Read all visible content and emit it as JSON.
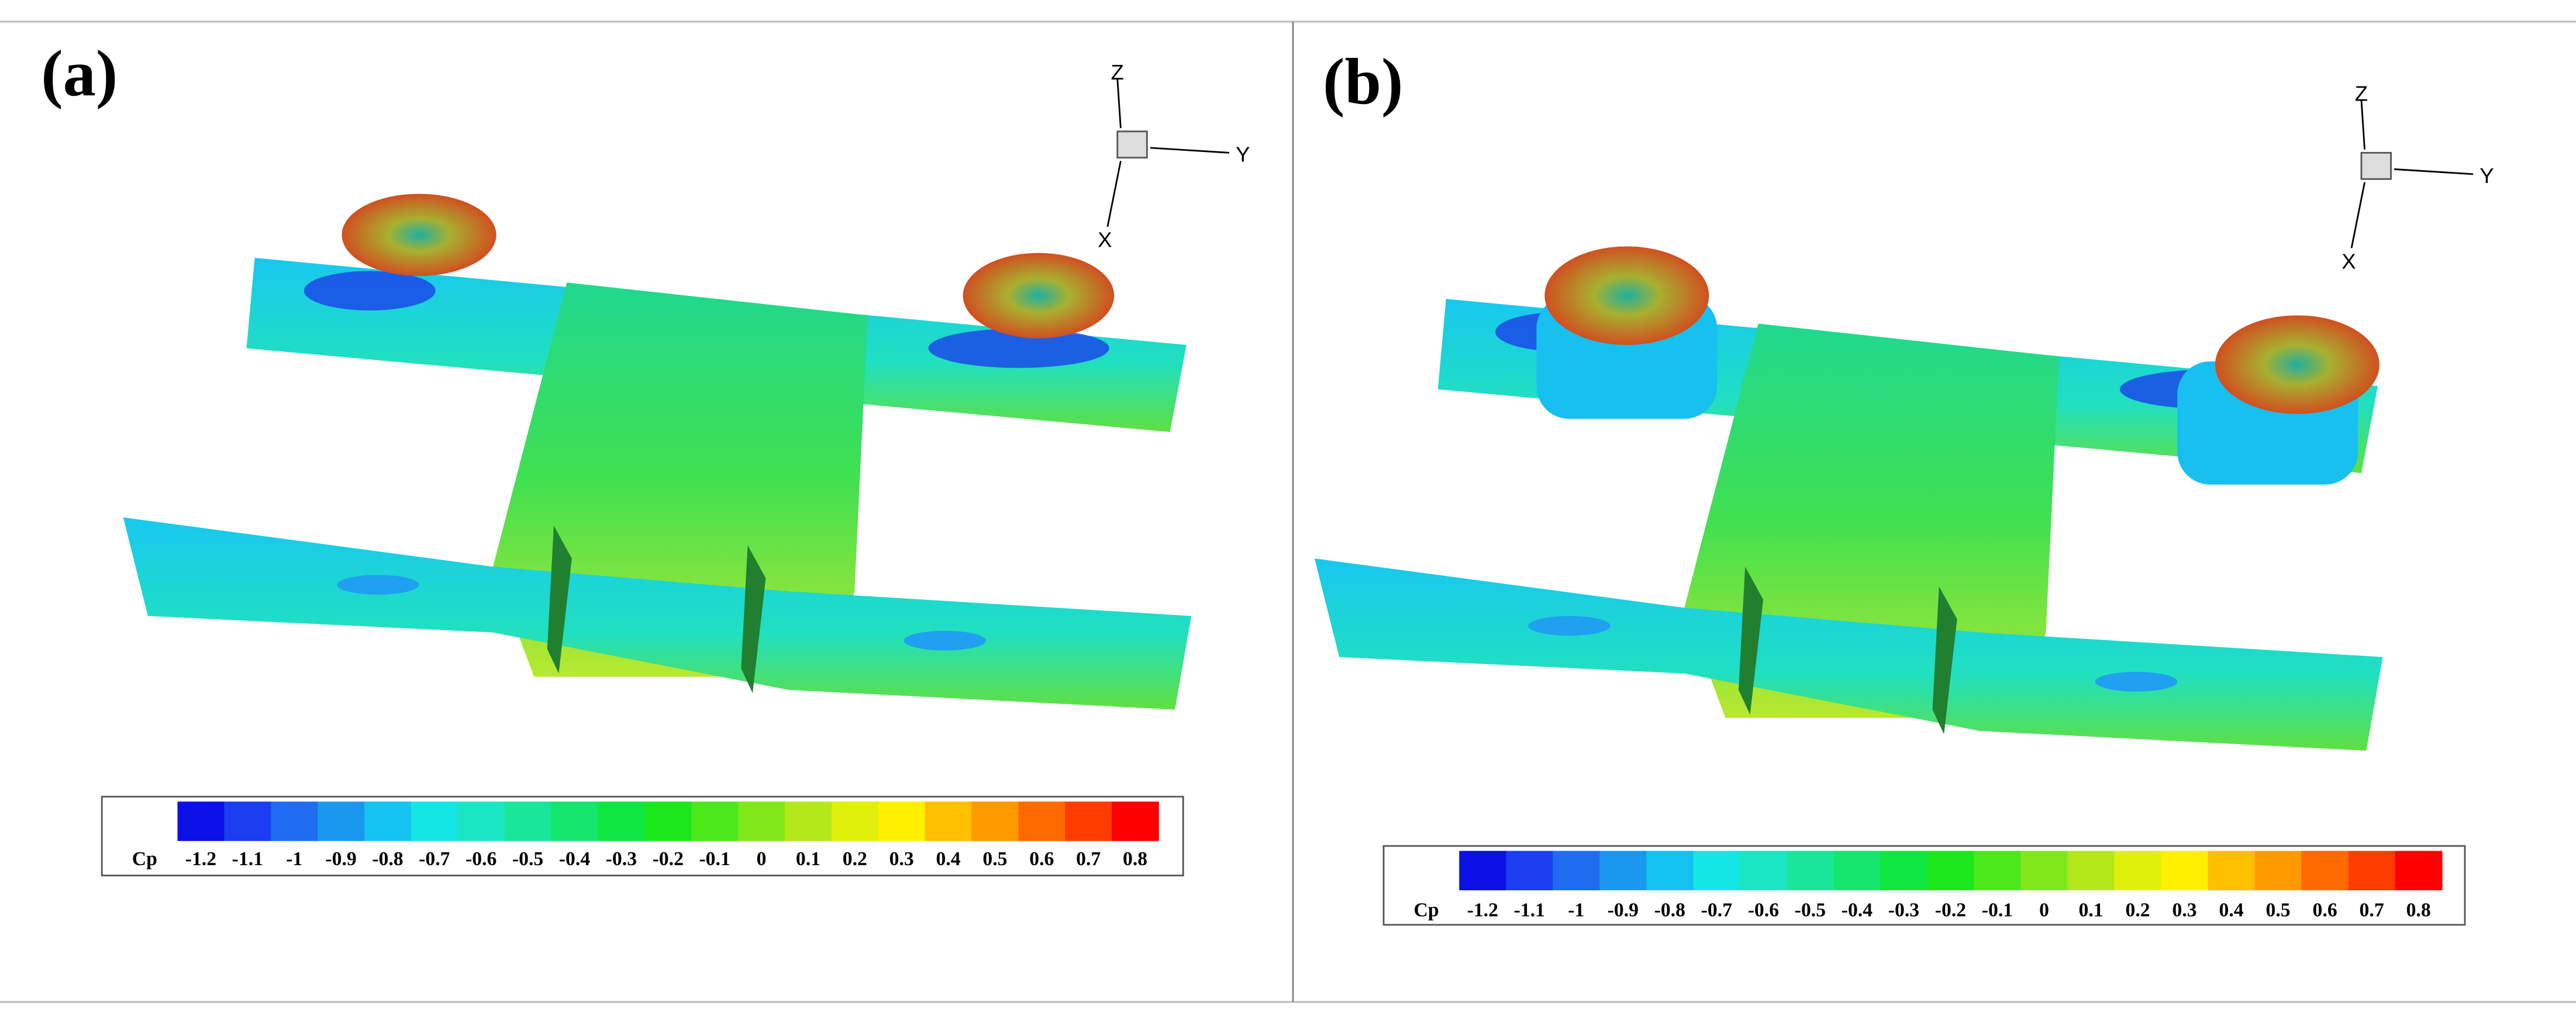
{
  "colors": [
    "#0a10e6",
    "#1a3ef0",
    "#1f6cf0",
    "#1a98ef",
    "#14c3f0",
    "#14e6e6",
    "#1ae6c3",
    "#1ae69b",
    "#14e66e",
    "#10e640",
    "#1ae81a",
    "#4ce81a",
    "#80e81a",
    "#b4e81a",
    "#e0f00a",
    "#fff000",
    "#ffc000",
    "#ff9900",
    "#ff6a00",
    "#ff3c00",
    "#ff0000"
  ],
  "panels": [
    {
      "label": "(a)",
      "axis_labels": {
        "z": "Z",
        "y": "Y",
        "x": "X"
      },
      "colorbar": {
        "title": "Cp",
        "ticks": [
          -1.2,
          -1.1,
          -1,
          -0.9,
          -0.8,
          -0.7,
          -0.6,
          -0.5,
          -0.4,
          -0.3,
          -0.2,
          -0.1,
          0,
          0.1,
          0.2,
          0.3,
          0.4,
          0.5,
          0.6,
          0.7,
          0.8
        ]
      }
    },
    {
      "label": "(b)",
      "axis_labels": {
        "z": "Z",
        "y": "Y",
        "x": "X"
      },
      "colorbar": {
        "title": "Cp",
        "ticks": [
          -1.2,
          -1.1,
          -1,
          -0.9,
          -0.8,
          -0.7,
          -0.6,
          -0.5,
          -0.4,
          -0.3,
          -0.2,
          -0.1,
          0,
          0.1,
          0.2,
          0.3,
          0.4,
          0.5,
          0.6,
          0.7,
          0.8
        ]
      }
    }
  ]
}
